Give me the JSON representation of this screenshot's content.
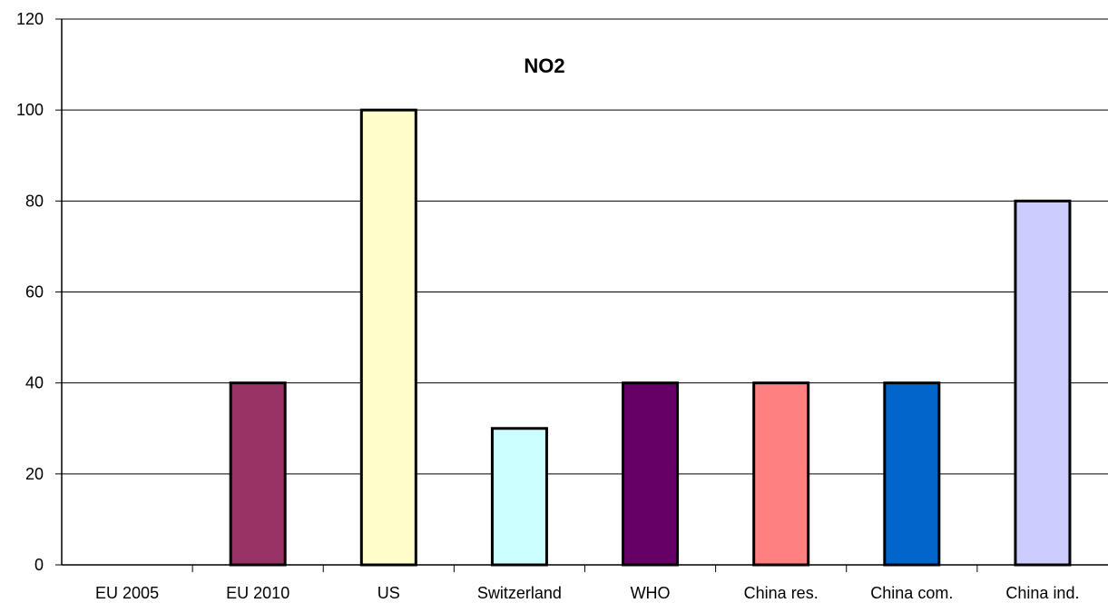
{
  "chart_data": {
    "type": "bar",
    "title": "NO2",
    "xlabel": "",
    "ylabel": "",
    "categories": [
      "EU 2005",
      "EU 2010",
      "US",
      "Switzerland",
      "WHO",
      "China res.",
      "China com.",
      "China ind."
    ],
    "values": [
      0,
      40,
      100,
      30,
      40,
      40,
      40,
      80
    ],
    "bar_colors": [
      "#ffffff",
      "#993366",
      "#ffffcc",
      "#ccffff",
      "#660066",
      "#ff8080",
      "#0066cc",
      "#ccccff"
    ],
    "ylim": [
      0,
      120
    ],
    "yticks": [
      0,
      20,
      40,
      60,
      80,
      100,
      120
    ],
    "grid": true,
    "legend": "none"
  }
}
